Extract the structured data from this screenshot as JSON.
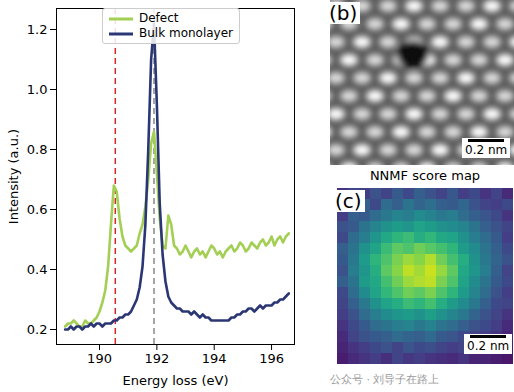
{
  "chart_data": [
    {
      "type": "line",
      "x_label": "Energy loss (eV)",
      "y_label": "Intensity (a.u.)",
      "xlim": [
        188.5,
        196.8
      ],
      "ylim": [
        0.15,
        1.27
      ],
      "xticks": [
        190,
        192,
        194,
        196
      ],
      "yticks": [
        0.2,
        0.4,
        0.6,
        0.8,
        {
          "value": 1,
          "label": "1.0"
        },
        1.2
      ],
      "grid": false,
      "legend": "upper left",
      "x": [
        188.8,
        188.9,
        189.0,
        189.1,
        189.2,
        189.3,
        189.4,
        189.5,
        189.6,
        189.7,
        189.8,
        189.9,
        190.0,
        190.1,
        190.2,
        190.3,
        190.4,
        190.5,
        190.6,
        190.7,
        190.8,
        190.9,
        191.0,
        191.1,
        191.2,
        191.3,
        191.4,
        191.5,
        191.6,
        191.7,
        191.8,
        191.9,
        192.0,
        192.1,
        192.2,
        192.3,
        192.4,
        192.5,
        192.6,
        192.7,
        192.8,
        192.9,
        193.0,
        193.1,
        193.2,
        193.3,
        193.4,
        193.5,
        193.6,
        193.7,
        193.8,
        193.9,
        194.0,
        194.1,
        194.2,
        194.3,
        194.4,
        194.5,
        194.6,
        194.7,
        194.8,
        194.9,
        195.0,
        195.1,
        195.2,
        195.3,
        195.4,
        195.5,
        195.6,
        195.7,
        195.8,
        195.9,
        196.0,
        196.1,
        196.2,
        196.3,
        196.4,
        196.5,
        196.6
      ],
      "series": [
        {
          "name": "Defect",
          "color": "#a3cf55",
          "line_style": "solid",
          "values": [
            0.21,
            0.22,
            0.22,
            0.23,
            0.22,
            0.21,
            0.21,
            0.23,
            0.22,
            0.22,
            0.23,
            0.24,
            0.26,
            0.29,
            0.33,
            0.41,
            0.55,
            0.68,
            0.66,
            0.57,
            0.51,
            0.48,
            0.47,
            0.46,
            0.47,
            0.48,
            0.52,
            0.55,
            0.61,
            0.7,
            0.82,
            0.86,
            0.72,
            0.57,
            0.48,
            0.47,
            0.58,
            0.55,
            0.48,
            0.47,
            0.45,
            0.46,
            0.48,
            0.46,
            0.44,
            0.46,
            0.47,
            0.45,
            0.46,
            0.44,
            0.46,
            0.48,
            0.47,
            0.45,
            0.46,
            0.44,
            0.46,
            0.47,
            0.48,
            0.46,
            0.47,
            0.49,
            0.48,
            0.46,
            0.47,
            0.49,
            0.48,
            0.47,
            0.49,
            0.5,
            0.48,
            0.49,
            0.51,
            0.48,
            0.5,
            0.51,
            0.49,
            0.51,
            0.52
          ]
        },
        {
          "name": "Bulk monolayer",
          "color": "#2b3674",
          "line_style": "solid",
          "values": [
            0.2,
            0.2,
            0.21,
            0.2,
            0.21,
            0.21,
            0.2,
            0.21,
            0.21,
            0.22,
            0.21,
            0.22,
            0.22,
            0.21,
            0.22,
            0.22,
            0.22,
            0.23,
            0.23,
            0.24,
            0.24,
            0.25,
            0.25,
            0.26,
            0.28,
            0.3,
            0.34,
            0.41,
            0.55,
            0.8,
            1.1,
            1.22,
            0.95,
            0.62,
            0.45,
            0.36,
            0.31,
            0.29,
            0.28,
            0.27,
            0.27,
            0.26,
            0.26,
            0.26,
            0.25,
            0.26,
            0.25,
            0.24,
            0.25,
            0.24,
            0.24,
            0.23,
            0.23,
            0.23,
            0.23,
            0.23,
            0.23,
            0.23,
            0.24,
            0.24,
            0.25,
            0.25,
            0.26,
            0.26,
            0.27,
            0.27,
            0.26,
            0.27,
            0.28,
            0.27,
            0.28,
            0.28,
            0.28,
            0.29,
            0.29,
            0.3,
            0.3,
            0.31,
            0.32
          ]
        }
      ],
      "vlines": [
        {
          "x": 190.55,
          "color": "#d62728",
          "line_style": "dashed"
        },
        {
          "x": 191.9,
          "color": "#888888",
          "line_style": "dashed"
        }
      ]
    },
    {
      "type": "image",
      "annotations": [
        "(b)",
        "0.2 nm"
      ]
    },
    {
      "type": "heatmap",
      "title": "NNMF score map",
      "annotations": [
        "(c)",
        "0.2 nm"
      ],
      "zlim": [
        0,
        1
      ],
      "cells": [
        [
          0.15,
          0.22,
          0.18,
          0.25,
          0.2,
          0.28,
          0.22,
          0.3,
          0.25,
          0.2,
          0.27,
          0.18,
          0.22,
          0.15,
          0.2,
          0.12
        ],
        [
          0.2,
          0.25,
          0.3,
          0.22,
          0.35,
          0.3,
          0.38,
          0.32,
          0.36,
          0.3,
          0.28,
          0.33,
          0.25,
          0.2,
          0.18,
          0.22
        ],
        [
          0.18,
          0.3,
          0.28,
          0.35,
          0.4,
          0.45,
          0.42,
          0.48,
          0.44,
          0.4,
          0.42,
          0.35,
          0.3,
          0.26,
          0.22,
          0.15
        ],
        [
          0.25,
          0.28,
          0.38,
          0.45,
          0.5,
          0.55,
          0.52,
          0.58,
          0.55,
          0.5,
          0.48,
          0.45,
          0.38,
          0.3,
          0.25,
          0.2
        ],
        [
          0.22,
          0.35,
          0.42,
          0.52,
          0.6,
          0.65,
          0.68,
          0.62,
          0.66,
          0.6,
          0.58,
          0.5,
          0.42,
          0.35,
          0.28,
          0.18
        ],
        [
          0.3,
          0.38,
          0.5,
          0.58,
          0.68,
          0.75,
          0.72,
          0.78,
          0.74,
          0.7,
          0.65,
          0.55,
          0.48,
          0.38,
          0.3,
          0.22
        ],
        [
          0.28,
          0.4,
          0.55,
          0.65,
          0.72,
          0.8,
          0.85,
          0.82,
          0.88,
          0.78,
          0.7,
          0.62,
          0.5,
          0.4,
          0.32,
          0.25
        ],
        [
          0.25,
          0.42,
          0.52,
          0.62,
          0.75,
          0.82,
          0.9,
          0.86,
          0.92,
          0.84,
          0.75,
          0.6,
          0.52,
          0.42,
          0.3,
          0.2
        ],
        [
          0.3,
          0.38,
          0.55,
          0.6,
          0.7,
          0.78,
          0.85,
          0.88,
          0.9,
          0.8,
          0.72,
          0.58,
          0.48,
          0.38,
          0.28,
          0.22
        ],
        [
          0.22,
          0.35,
          0.48,
          0.58,
          0.66,
          0.72,
          0.78,
          0.75,
          0.8,
          0.72,
          0.65,
          0.55,
          0.45,
          0.35,
          0.25,
          0.18
        ],
        [
          0.2,
          0.3,
          0.4,
          0.5,
          0.58,
          0.62,
          0.68,
          0.65,
          0.7,
          0.62,
          0.55,
          0.48,
          0.4,
          0.3,
          0.22,
          0.2
        ],
        [
          0.18,
          0.25,
          0.35,
          0.42,
          0.48,
          0.52,
          0.55,
          0.5,
          0.56,
          0.5,
          0.45,
          0.4,
          0.32,
          0.25,
          0.2,
          0.15
        ],
        [
          0.15,
          0.22,
          0.28,
          0.35,
          0.38,
          0.42,
          0.45,
          0.4,
          0.44,
          0.38,
          0.35,
          0.3,
          0.25,
          0.22,
          0.18,
          0.12
        ],
        [
          0.12,
          0.2,
          0.25,
          0.28,
          0.3,
          0.35,
          0.32,
          0.3,
          0.34,
          0.28,
          0.26,
          0.22,
          0.2,
          0.18,
          0.15,
          0.1
        ],
        [
          0.1,
          0.15,
          0.18,
          0.22,
          0.25,
          0.2,
          0.26,
          0.22,
          0.24,
          0.2,
          0.18,
          0.2,
          0.15,
          0.12,
          0.1,
          0.08
        ],
        [
          0.08,
          0.12,
          0.15,
          0.18,
          0.14,
          0.2,
          0.16,
          0.18,
          0.15,
          0.14,
          0.12,
          0.15,
          0.1,
          0.1,
          0.08,
          0.06
        ]
      ]
    }
  ],
  "watermark": "公众号 · 刘导子在路上"
}
